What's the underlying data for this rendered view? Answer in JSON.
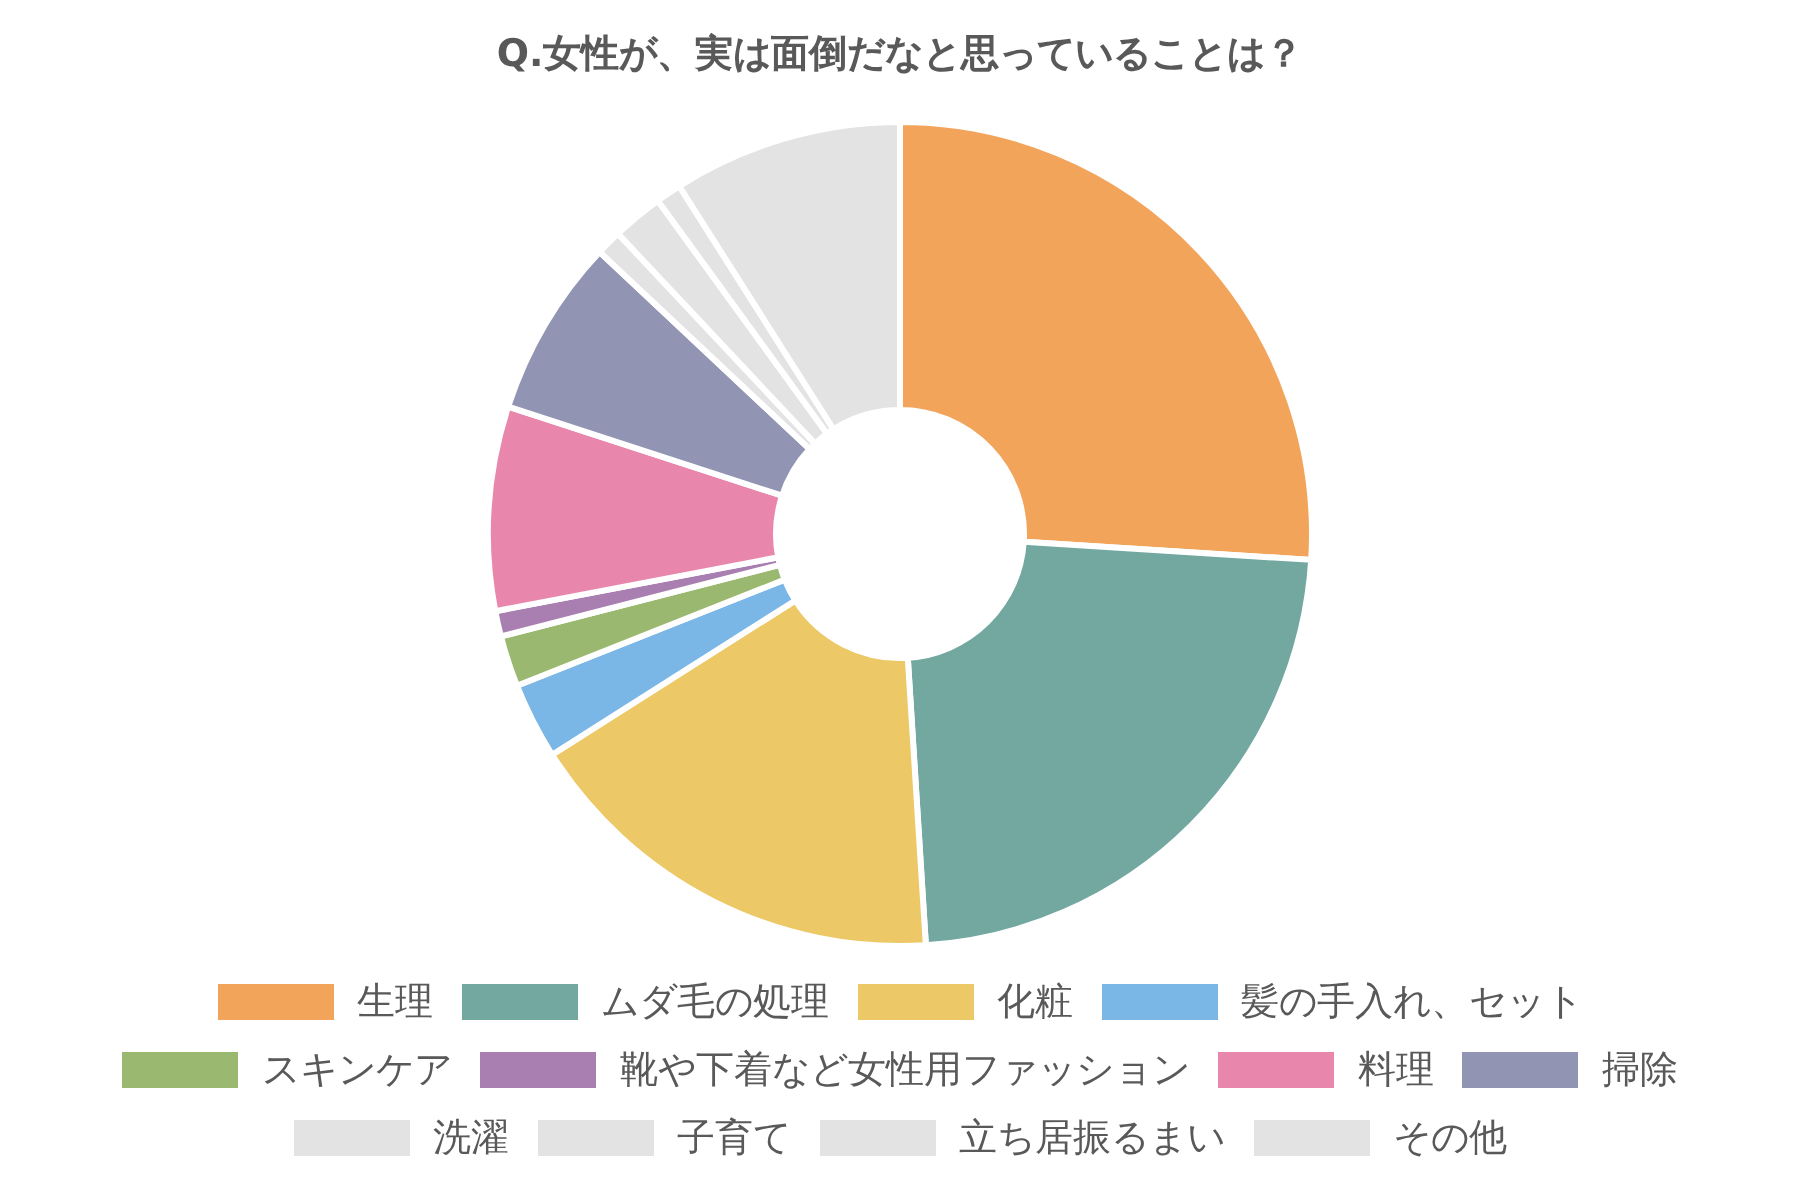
{
  "chart_data": {
    "type": "donut",
    "title": "Q.女性が、実は面倒だなと思っていることは？",
    "categories": [
      "生理",
      "ムダ毛の処理",
      "化粧",
      "髪の手入れ、セット",
      "スキンケア",
      "靴や下着など女性用ファッション",
      "料理",
      "掃除",
      "洗濯",
      "子育て",
      "立ち居振るまい",
      "その他"
    ],
    "values": [
      26,
      23,
      17,
      3,
      2,
      1,
      8,
      7,
      1,
      2,
      1,
      9
    ],
    "colors": [
      "#f2a45a",
      "#72a8a0",
      "#edc866",
      "#7ab6e6",
      "#9ab870",
      "#a87fb0",
      "#e986ab",
      "#9194b2",
      "#e3e3e3",
      "#e3e3e3",
      "#e3e3e3",
      "#e3e3e3"
    ],
    "legend": "bottom"
  }
}
